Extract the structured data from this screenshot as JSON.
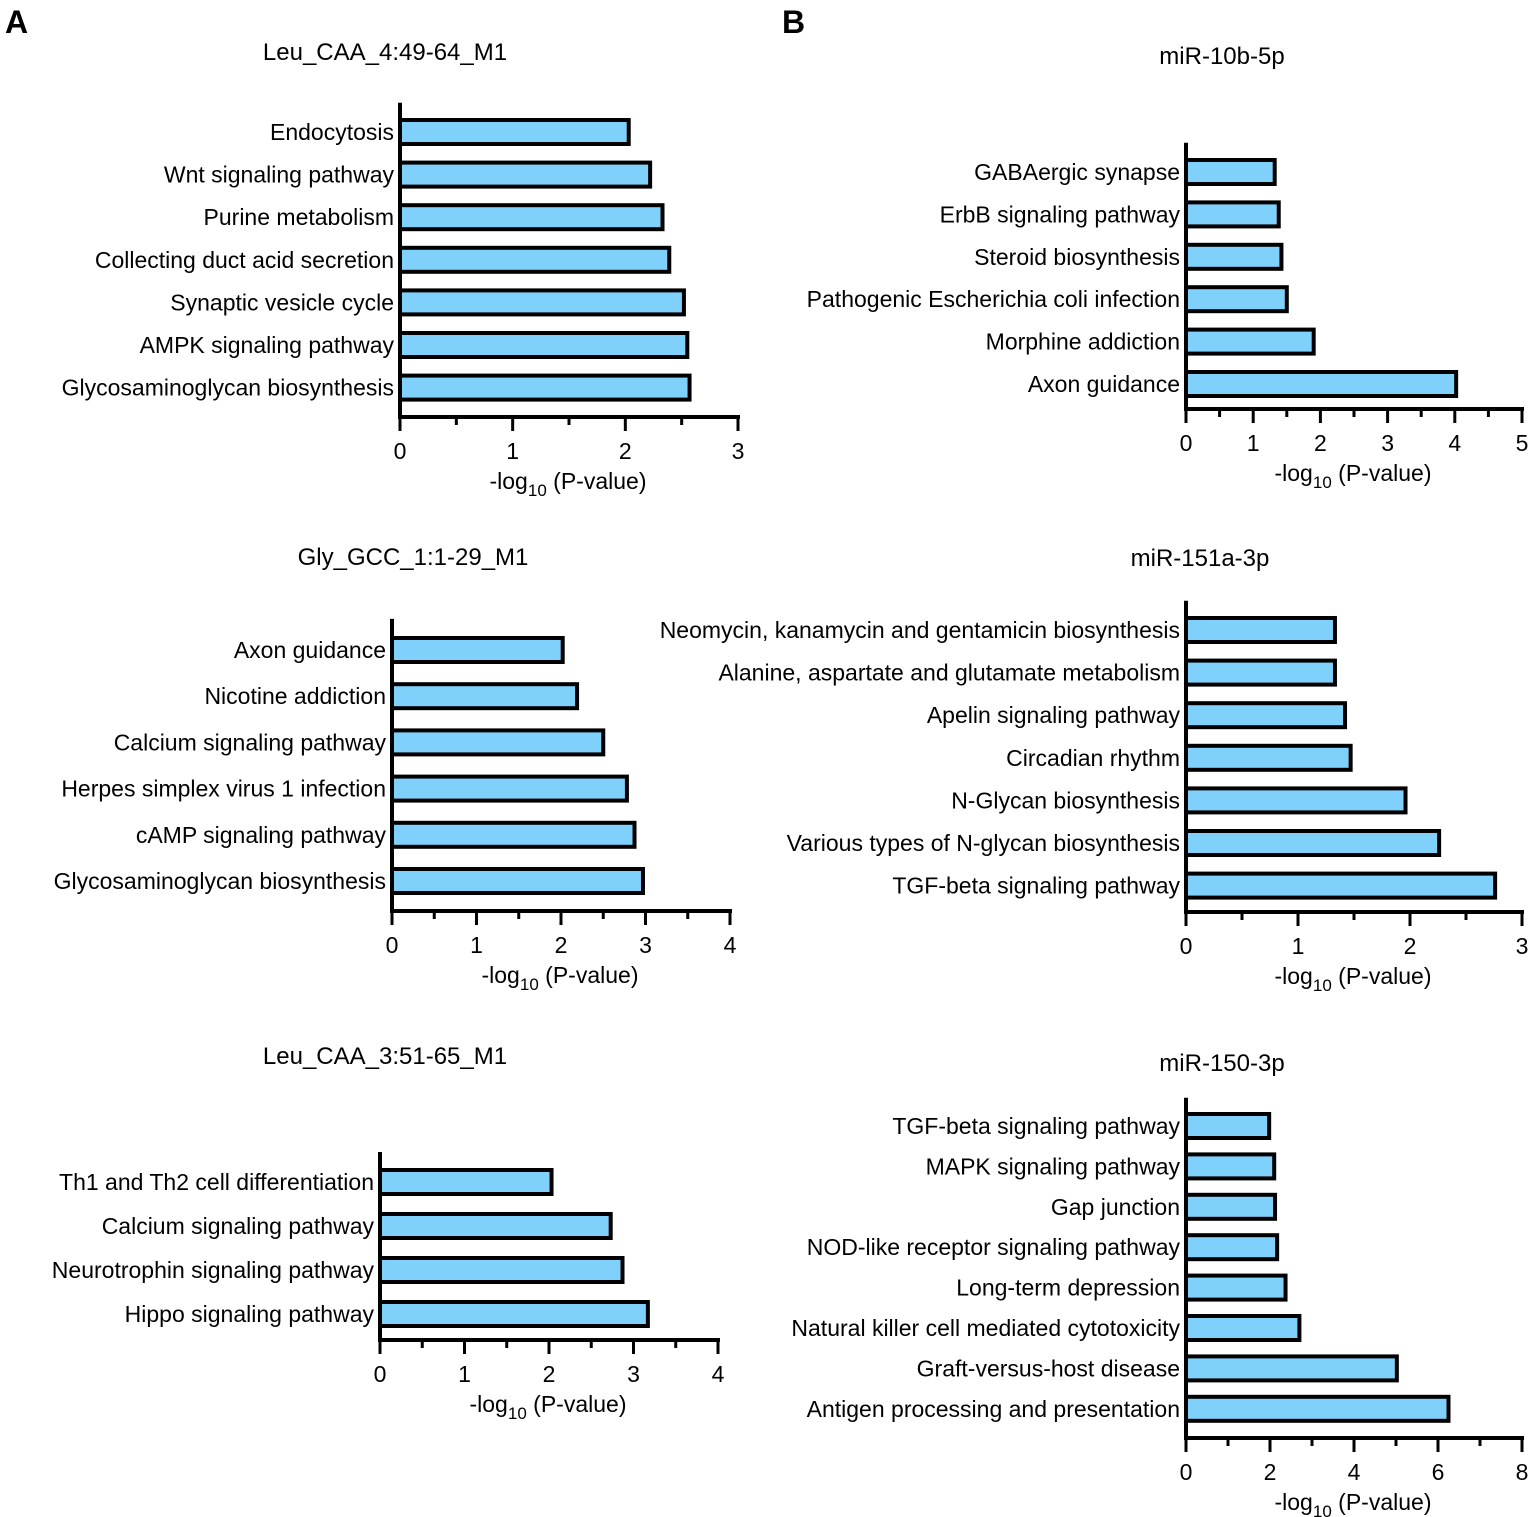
{
  "panels": {
    "A": {
      "label": "A"
    },
    "B": {
      "label": "B"
    }
  },
  "colors": {
    "bar_fill": "#7fd1fc",
    "bar_stroke": "#000000",
    "axis": "#000000"
  },
  "chart_data": [
    {
      "type": "bar",
      "orientation": "horizontal",
      "panel": "A",
      "title": "Leu_CAA_4:49-64_M1",
      "categories": [
        "Endocytosis",
        "Wnt signaling pathway",
        "Purine metabolism",
        "Collecting duct acid secretion",
        "Synaptic vesicle cycle",
        "AMPK signaling pathway",
        "Glycosaminoglycan biosynthesis"
      ],
      "values": [
        2.03,
        2.22,
        2.33,
        2.39,
        2.52,
        2.55,
        2.57
      ],
      "xlim": [
        0,
        3
      ],
      "xticks": [
        0,
        1,
        2,
        3
      ],
      "xlabel_prefix": "-log",
      "xlabel_sub": "10",
      "xlabel_suffix": " (P-value)"
    },
    {
      "type": "bar",
      "orientation": "horizontal",
      "panel": "A",
      "title": "Gly_GCC_1:1-29_M1",
      "categories": [
        "Axon guidance",
        "Nicotine addiction",
        "Calcium signaling pathway",
        "Herpes simplex virus 1 infection",
        "cAMP signaling pathway",
        "Glycosaminoglycan biosynthesis"
      ],
      "values": [
        2.02,
        2.19,
        2.5,
        2.78,
        2.87,
        2.97
      ],
      "xlim": [
        0,
        4
      ],
      "xticks": [
        0,
        1,
        2,
        3,
        4
      ],
      "xlabel_prefix": "-log",
      "xlabel_sub": "10",
      "xlabel_suffix": " (P-value)"
    },
    {
      "type": "bar",
      "orientation": "horizontal",
      "panel": "A",
      "title": "Leu_CAA_3:51-65_M1",
      "categories": [
        "Th1 and Th2 cell differentiation",
        "Calcium signaling pathway",
        "Neurotrophin signaling pathway",
        "Hippo signaling pathway"
      ],
      "values": [
        2.03,
        2.73,
        2.87,
        3.17
      ],
      "xlim": [
        0,
        4
      ],
      "xticks": [
        0,
        1,
        2,
        3,
        4
      ],
      "xlabel_prefix": "-log",
      "xlabel_sub": "10",
      "xlabel_suffix": " (P-value)"
    },
    {
      "type": "bar",
      "orientation": "horizontal",
      "panel": "B",
      "title": "miR-10b-5p",
      "categories": [
        "GABAergic synapse",
        "ErbB signaling pathway",
        "Steroid biosynthesis",
        "Pathogenic Escherichia coli infection",
        "Morphine addiction",
        "Axon guidance"
      ],
      "values": [
        1.32,
        1.38,
        1.42,
        1.5,
        1.9,
        4.02
      ],
      "xlim": [
        0,
        5
      ],
      "xticks": [
        0,
        1,
        2,
        3,
        4,
        5
      ],
      "xlabel_prefix": "-log",
      "xlabel_sub": "10",
      "xlabel_suffix": " (P-value)"
    },
    {
      "type": "bar",
      "orientation": "horizontal",
      "panel": "B",
      "title": "miR-151a-3p",
      "categories": [
        "Neomycin, kanamycin and gentamicin biosynthesis",
        "Alanine, aspartate and glutamate metabolism",
        "Apelin signaling pathway",
        "Circadian rhythm",
        "N-Glycan biosynthesis",
        "Various types of N-glycan biosynthesis",
        "TGF-beta signaling pathway"
      ],
      "values": [
        1.33,
        1.33,
        1.42,
        1.47,
        1.96,
        2.26,
        2.76
      ],
      "xlim": [
        0,
        3
      ],
      "xticks": [
        0,
        1,
        2,
        3
      ],
      "xlabel_prefix": "-log",
      "xlabel_sub": "10",
      "xlabel_suffix": " (P-value)"
    },
    {
      "type": "bar",
      "orientation": "horizontal",
      "panel": "B",
      "title": "miR-150-3p",
      "categories": [
        "TGF-beta signaling pathway",
        "MAPK signaling pathway",
        "Gap junction",
        "NOD-like receptor signaling pathway",
        "Long-term depression",
        "Natural killer cell mediated cytotoxicity",
        "Graft-versus-host disease",
        "Antigen processing and presentation"
      ],
      "values": [
        1.98,
        2.1,
        2.12,
        2.17,
        2.37,
        2.7,
        5.02,
        6.25
      ],
      "xlim": [
        0,
        8
      ],
      "xticks": [
        0,
        2,
        4,
        6,
        8
      ],
      "xlabel_prefix": "-log",
      "xlabel_sub": "10",
      "xlabel_suffix": " (P-value)"
    }
  ]
}
